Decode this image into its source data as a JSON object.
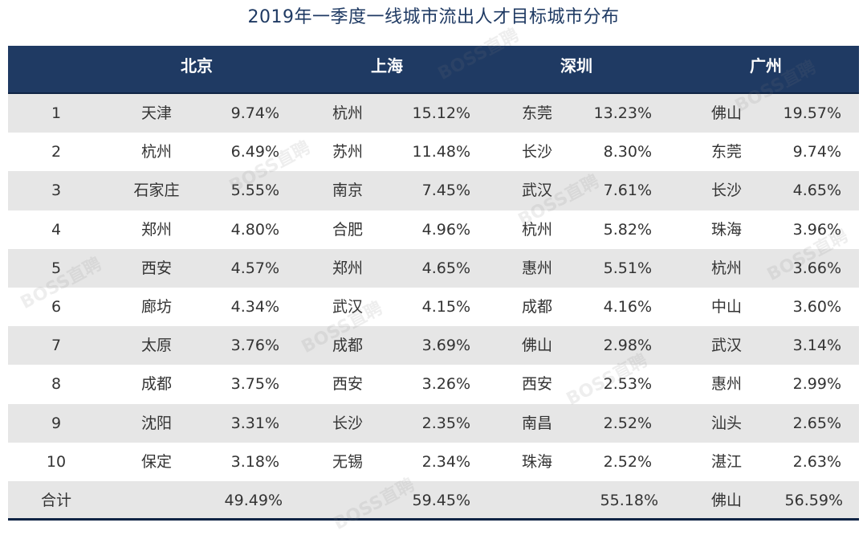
{
  "title": "2019年一季度一线城市流出人才目标城市分布",
  "headers": [
    "北京",
    "上海",
    "深圳",
    "广州"
  ],
  "rows": [
    {
      "rank": "1",
      "bj": [
        "天津",
        "9.74%"
      ],
      "sh": [
        "杭州",
        "15.12%"
      ],
      "sz": [
        "东莞",
        "13.23%"
      ],
      "gz": [
        "佛山",
        "19.57%"
      ]
    },
    {
      "rank": "2",
      "bj": [
        "杭州",
        "6.49%"
      ],
      "sh": [
        "苏州",
        "11.48%"
      ],
      "sz": [
        "长沙",
        "8.30%"
      ],
      "gz": [
        "东莞",
        "9.74%"
      ]
    },
    {
      "rank": "3",
      "bj": [
        "石家庄",
        "5.55%"
      ],
      "sh": [
        "南京",
        "7.45%"
      ],
      "sz": [
        "武汉",
        "7.61%"
      ],
      "gz": [
        "长沙",
        "4.65%"
      ]
    },
    {
      "rank": "4",
      "bj": [
        "郑州",
        "4.80%"
      ],
      "sh": [
        "合肥",
        "4.96%"
      ],
      "sz": [
        "杭州",
        "5.82%"
      ],
      "gz": [
        "珠海",
        "3.96%"
      ]
    },
    {
      "rank": "5",
      "bj": [
        "西安",
        "4.57%"
      ],
      "sh": [
        "郑州",
        "4.65%"
      ],
      "sz": [
        "惠州",
        "5.51%"
      ],
      "gz": [
        "杭州",
        "3.66%"
      ]
    },
    {
      "rank": "6",
      "bj": [
        "廊坊",
        "4.34%"
      ],
      "sh": [
        "武汉",
        "4.15%"
      ],
      "sz": [
        "成都",
        "4.16%"
      ],
      "gz": [
        "中山",
        "3.60%"
      ]
    },
    {
      "rank": "7",
      "bj": [
        "太原",
        "3.76%"
      ],
      "sh": [
        "成都",
        "3.69%"
      ],
      "sz": [
        "佛山",
        "2.98%"
      ],
      "gz": [
        "武汉",
        "3.14%"
      ]
    },
    {
      "rank": "8",
      "bj": [
        "成都",
        "3.75%"
      ],
      "sh": [
        "西安",
        "3.26%"
      ],
      "sz": [
        "西安",
        "2.53%"
      ],
      "gz": [
        "惠州",
        "2.99%"
      ]
    },
    {
      "rank": "9",
      "bj": [
        "沈阳",
        "3.31%"
      ],
      "sh": [
        "长沙",
        "2.35%"
      ],
      "sz": [
        "南昌",
        "2.52%"
      ],
      "gz": [
        "汕头",
        "2.65%"
      ]
    },
    {
      "rank": "10",
      "bj": [
        "保定",
        "3.18%"
      ],
      "sh": [
        "无锡",
        "2.34%"
      ],
      "sz": [
        "珠海",
        "2.52%"
      ],
      "gz": [
        "湛江",
        "2.63%"
      ]
    }
  ],
  "total": {
    "label": "合计",
    "bj": "49.49%",
    "sh": "59.45%",
    "sz": "55.18%",
    "gz_name": "佛山",
    "gz": "56.59%"
  },
  "watermark": "BOSS直聘",
  "colors": {
    "header_bg": "#1f3a63",
    "title": "#1f3a63",
    "shaded_row": "#e6e6e6"
  }
}
